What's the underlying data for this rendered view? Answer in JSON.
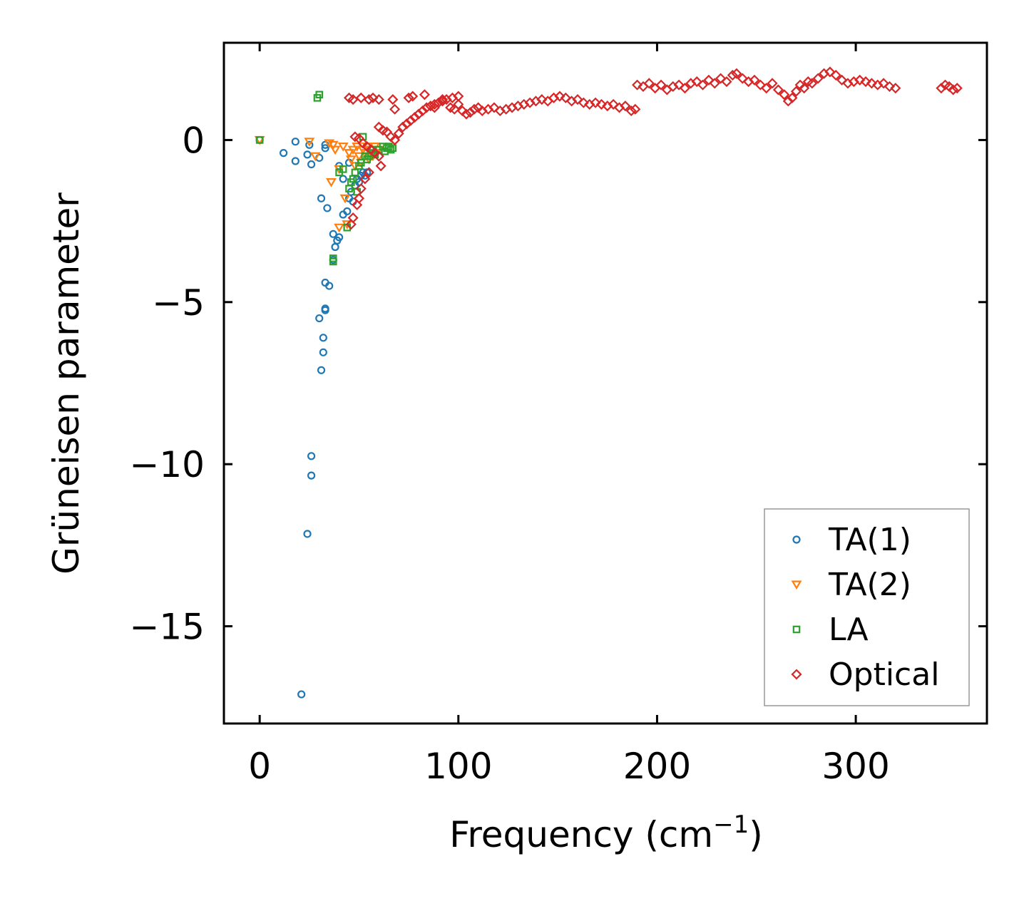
{
  "chart_data": {
    "type": "scatter",
    "title": "",
    "xlabel": "Frequency (cm",
    "xlabel_superscript": "−1",
    "xlabel_suffix": ")",
    "ylabel": "Grüneisen parameter",
    "xlim": [
      -18,
      366
    ],
    "ylim": [
      -18,
      3
    ],
    "xticks": [
      0,
      100,
      200,
      300
    ],
    "xtick_labels": [
      "0",
      "100",
      "200",
      "300"
    ],
    "yticks": [
      0,
      -5,
      -10,
      -15
    ],
    "ytick_labels": [
      "0",
      "−5",
      "−10",
      "−15"
    ],
    "grid": false,
    "legend_position": "lower-right",
    "series": [
      {
        "name": "TA(1)",
        "marker": "circle",
        "color": "#1f77b4",
        "points": [
          [
            0,
            0
          ],
          [
            12,
            -0.4
          ],
          [
            18,
            -0.05
          ],
          [
            18,
            -0.65
          ],
          [
            24,
            -0.45
          ],
          [
            25,
            -0.15
          ],
          [
            26,
            -0.75
          ],
          [
            30,
            -0.55
          ],
          [
            33,
            -0.15
          ],
          [
            33,
            -0.25
          ],
          [
            31,
            -1.8
          ],
          [
            34,
            -2.1
          ],
          [
            33,
            -4.4
          ],
          [
            35,
            -4.5
          ],
          [
            33,
            -5.2
          ],
          [
            33,
            -5.25
          ],
          [
            30,
            -5.5
          ],
          [
            32,
            -6.1
          ],
          [
            32,
            -6.55
          ],
          [
            31,
            -7.1
          ],
          [
            26,
            -9.75
          ],
          [
            26,
            -10.35
          ],
          [
            24,
            -12.15
          ],
          [
            21,
            -17.1
          ],
          [
            37,
            -2.9
          ],
          [
            38,
            -3.3
          ],
          [
            37,
            -3.7
          ],
          [
            39,
            -3.1
          ],
          [
            40,
            -3.0
          ],
          [
            40,
            -0.8
          ],
          [
            42,
            -1.2
          ],
          [
            42,
            -2.3
          ],
          [
            44,
            -2.2
          ],
          [
            45,
            -0.7
          ],
          [
            45,
            -1.8
          ],
          [
            46,
            -1.6
          ],
          [
            47,
            -1.9
          ],
          [
            48,
            -1.4
          ],
          [
            49,
            -1.2
          ],
          [
            50,
            -1.3
          ],
          [
            51,
            -1.1
          ],
          [
            52,
            -1.0
          ],
          [
            53,
            -1.1
          ],
          [
            54,
            -1.0
          ]
        ]
      },
      {
        "name": "TA(2)",
        "marker": "triangle-down",
        "color": "#ff7f0e",
        "points": [
          [
            0,
            0
          ],
          [
            25,
            -0.05
          ],
          [
            28,
            -0.5
          ],
          [
            35,
            -0.1
          ],
          [
            37,
            -0.15
          ],
          [
            38,
            -0.3
          ],
          [
            36,
            -1.3
          ],
          [
            40,
            -0.9
          ],
          [
            42,
            -0.2
          ],
          [
            43,
            -1.8
          ],
          [
            40,
            -2.7
          ],
          [
            44,
            -2.6
          ],
          [
            45,
            -0.4
          ],
          [
            46,
            -0.6
          ],
          [
            47,
            -0.3
          ],
          [
            48,
            -0.8
          ],
          [
            49,
            -0.2
          ],
          [
            50,
            -0.5
          ],
          [
            51,
            -0.7
          ],
          [
            52,
            -0.3
          ],
          [
            53,
            -0.4
          ],
          [
            54,
            -0.2
          ],
          [
            55,
            -0.6
          ],
          [
            56,
            -0.3
          ],
          [
            57,
            -0.5
          ],
          [
            58,
            -0.2
          ],
          [
            59,
            -0.4
          ],
          [
            60,
            -0.3
          ]
        ]
      },
      {
        "name": "LA",
        "marker": "square",
        "color": "#2ca02c",
        "points": [
          [
            0,
            0
          ],
          [
            29,
            1.3
          ],
          [
            30,
            1.4
          ],
          [
            37,
            -3.75
          ],
          [
            37,
            -3.65
          ],
          [
            40,
            -1.0
          ],
          [
            42,
            -0.9
          ],
          [
            44,
            -2.7
          ],
          [
            45,
            -1.5
          ],
          [
            46,
            -1.3
          ],
          [
            47,
            -1.2
          ],
          [
            48,
            -1.0
          ],
          [
            49,
            -1.6
          ],
          [
            50,
            -0.8
          ],
          [
            51,
            -0.7
          ],
          [
            52,
            0.1
          ],
          [
            53,
            -0.5
          ],
          [
            54,
            -0.6
          ],
          [
            55,
            -0.5
          ],
          [
            56,
            -0.4
          ],
          [
            57,
            -0.3
          ],
          [
            58,
            -0.45
          ],
          [
            60,
            -0.3
          ],
          [
            62,
            -0.2
          ],
          [
            63,
            -0.35
          ],
          [
            64,
            -0.25
          ],
          [
            65,
            -0.2
          ],
          [
            66,
            -0.3
          ],
          [
            67,
            -0.25
          ]
        ]
      },
      {
        "name": "Optical",
        "marker": "diamond",
        "color": "#d62728",
        "points": [
          [
            45,
            1.3
          ],
          [
            47,
            1.25
          ],
          [
            51,
            1.3
          ],
          [
            55,
            1.25
          ],
          [
            57,
            1.3
          ],
          [
            60,
            1.25
          ],
          [
            67,
            1.25
          ],
          [
            68,
            0.95
          ],
          [
            75,
            1.3
          ],
          [
            77,
            1.35
          ],
          [
            83,
            1.4
          ],
          [
            88,
            1.0
          ],
          [
            92,
            1.25
          ],
          [
            97,
            1.3
          ],
          [
            100,
            1.35
          ],
          [
            48,
            0.1
          ],
          [
            50,
            0.05
          ],
          [
            52,
            -0.1
          ],
          [
            54,
            -0.2
          ],
          [
            56,
            -0.3
          ],
          [
            58,
            -0.4
          ],
          [
            60,
            -0.5
          ],
          [
            61,
            -0.8
          ],
          [
            55,
            -1.0
          ],
          [
            53,
            -1.2
          ],
          [
            51,
            -1.5
          ],
          [
            50,
            -1.8
          ],
          [
            49,
            -2.0
          ],
          [
            47,
            -2.4
          ],
          [
            46,
            -2.6
          ],
          [
            60,
            0.4
          ],
          [
            62,
            0.3
          ],
          [
            64,
            0.25
          ],
          [
            66,
            0.1
          ],
          [
            68,
            0.0
          ],
          [
            70,
            0.2
          ],
          [
            72,
            0.4
          ],
          [
            74,
            0.5
          ],
          [
            76,
            0.6
          ],
          [
            78,
            0.7
          ],
          [
            80,
            0.8
          ],
          [
            82,
            0.9
          ],
          [
            84,
            1.0
          ],
          [
            86,
            1.05
          ],
          [
            88,
            1.1
          ],
          [
            90,
            1.15
          ],
          [
            92,
            1.2
          ],
          [
            94,
            1.25
          ],
          [
            96,
            1.0
          ],
          [
            98,
            0.95
          ],
          [
            100,
            1.1
          ],
          [
            102,
            0.9
          ],
          [
            104,
            0.8
          ],
          [
            106,
            0.85
          ],
          [
            108,
            0.95
          ],
          [
            110,
            1.0
          ],
          [
            112,
            0.9
          ],
          [
            115,
            0.95
          ],
          [
            118,
            1.0
          ],
          [
            121,
            0.9
          ],
          [
            124,
            0.95
          ],
          [
            127,
            1.0
          ],
          [
            130,
            1.05
          ],
          [
            133,
            1.1
          ],
          [
            136,
            1.15
          ],
          [
            139,
            1.2
          ],
          [
            142,
            1.25
          ],
          [
            145,
            1.2
          ],
          [
            148,
            1.3
          ],
          [
            151,
            1.35
          ],
          [
            154,
            1.3
          ],
          [
            157,
            1.2
          ],
          [
            160,
            1.25
          ],
          [
            163,
            1.15
          ],
          [
            166,
            1.1
          ],
          [
            169,
            1.15
          ],
          [
            172,
            1.1
          ],
          [
            175,
            1.05
          ],
          [
            178,
            1.1
          ],
          [
            181,
            1.0
          ],
          [
            184,
            1.05
          ],
          [
            187,
            0.9
          ],
          [
            189,
            0.95
          ],
          [
            190,
            1.7
          ],
          [
            193,
            1.65
          ],
          [
            196,
            1.75
          ],
          [
            199,
            1.6
          ],
          [
            202,
            1.7
          ],
          [
            205,
            1.55
          ],
          [
            208,
            1.65
          ],
          [
            211,
            1.7
          ],
          [
            214,
            1.6
          ],
          [
            217,
            1.75
          ],
          [
            220,
            1.8
          ],
          [
            223,
            1.7
          ],
          [
            226,
            1.85
          ],
          [
            229,
            1.75
          ],
          [
            232,
            1.9
          ],
          [
            235,
            1.8
          ],
          [
            238,
            2.0
          ],
          [
            240,
            2.05
          ],
          [
            243,
            1.9
          ],
          [
            246,
            1.8
          ],
          [
            249,
            1.85
          ],
          [
            252,
            1.7
          ],
          [
            255,
            1.6
          ],
          [
            258,
            1.75
          ],
          [
            261,
            1.55
          ],
          [
            264,
            1.4
          ],
          [
            266,
            1.2
          ],
          [
            268,
            1.3
          ],
          [
            270,
            1.5
          ],
          [
            272,
            1.7
          ],
          [
            274,
            1.6
          ],
          [
            276,
            1.8
          ],
          [
            278,
            1.75
          ],
          [
            281,
            1.9
          ],
          [
            284,
            2.05
          ],
          [
            287,
            2.1
          ],
          [
            290,
            2.0
          ],
          [
            293,
            1.85
          ],
          [
            296,
            1.75
          ],
          [
            299,
            1.8
          ],
          [
            302,
            1.85
          ],
          [
            305,
            1.8
          ],
          [
            308,
            1.75
          ],
          [
            311,
            1.7
          ],
          [
            314,
            1.75
          ],
          [
            317,
            1.65
          ],
          [
            320,
            1.6
          ],
          [
            343,
            1.6
          ],
          [
            345,
            1.7
          ],
          [
            347,
            1.65
          ],
          [
            349,
            1.55
          ],
          [
            351,
            1.6
          ]
        ]
      }
    ]
  }
}
